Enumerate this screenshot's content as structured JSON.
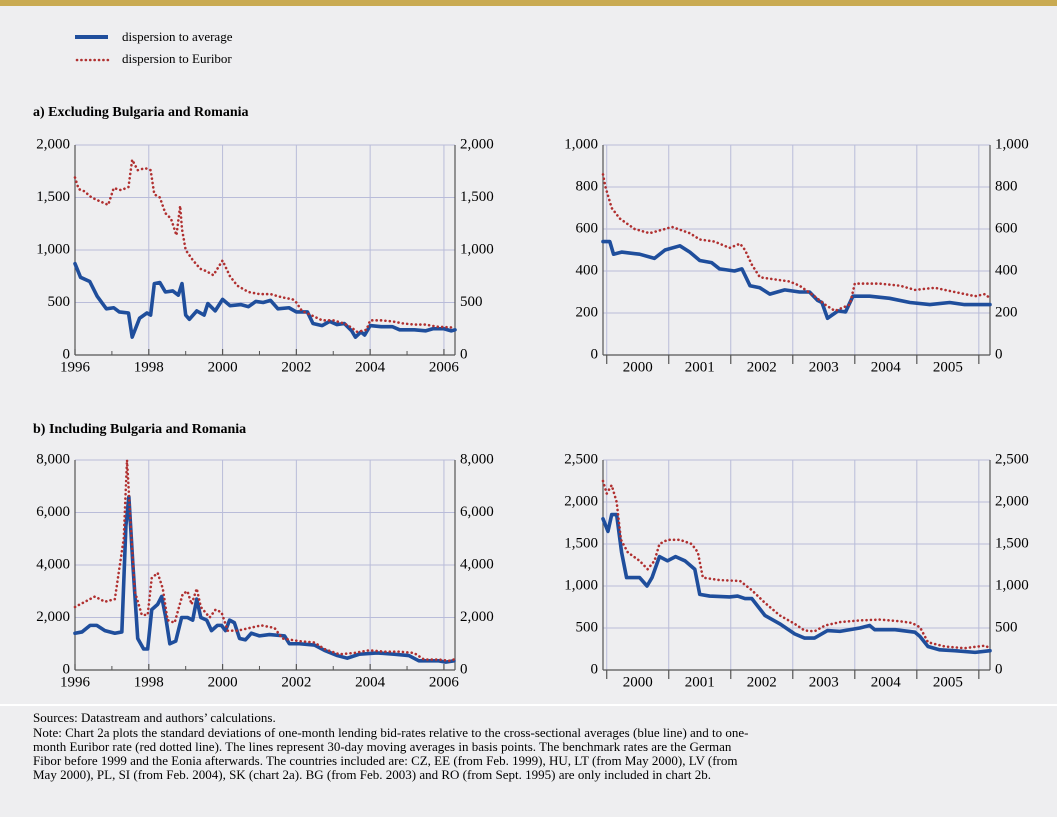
{
  "sections": [
    "a) Excluding Bulgaria and Romania",
    "b) Including Bulgaria and Romania"
  ],
  "sources": "Sources: Datastream and authors’ calculations.",
  "note": [
    "Note: Chart 2a plots the standard deviations of one-month lending bid-rates relative to the cross-sectional averages (blue line) and to one-",
    "month Euribor rate (red dotted line). The lines represent 30-day moving averages in basis points. The benchmark rates are the German",
    "Fibor before 1999 and the Eonia afterwards. The countries included are: CZ, EE (from Feb. 1999), HU, LT (from May 2000), LV (from",
    "May 2000), PL, SI (from Feb. 2004), SK (chart 2a). BG (from Feb. 2003) and RO (from Sept. 1995) are only included in chart 2b."
  ],
  "chart_data": [
    {
      "type": "line",
      "grid": true,
      "xlim": [
        1996,
        2006.3
      ],
      "ylim": [
        0,
        2000
      ],
      "xticks": [
        1996,
        1998,
        2000,
        2002,
        2004,
        2006
      ],
      "xminorticks": [
        1997,
        1999,
        2001,
        2003,
        2005
      ],
      "yticks": [
        0,
        500,
        {
          "value": 1000,
          "label": "1,000"
        },
        {
          "value": 1500,
          "label": "1,500"
        },
        {
          "value": 2000,
          "label": "2,000"
        }
      ],
      "series": [
        {
          "name": "dispersion to average",
          "color": "#1f4e9c",
          "style": "solid",
          "x": [
            1996.0,
            1996.15,
            1996.4,
            1996.6,
            1996.85,
            1997.05,
            1997.2,
            1997.45,
            1997.55,
            1997.75,
            1997.95,
            1998.05,
            1998.15,
            1998.3,
            1998.45,
            1998.65,
            1998.8,
            1998.9,
            1999.0,
            1999.1,
            1999.3,
            1999.5,
            1999.6,
            1999.8,
            2000.0,
            2000.2,
            2000.5,
            2000.7,
            2000.9,
            2001.1,
            2001.3,
            2001.5,
            2001.8,
            2002.0,
            2002.3,
            2002.45,
            2002.7,
            2002.9,
            2003.1,
            2003.3,
            2003.5,
            2003.6,
            2003.75,
            2003.85,
            2004.0,
            2004.3,
            2004.6,
            2004.8,
            2005.2,
            2005.5,
            2005.7,
            2006.0,
            2006.2,
            2006.3
          ],
          "values": [
            870,
            740,
            700,
            560,
            440,
            450,
            410,
            400,
            170,
            350,
            400,
            380,
            680,
            690,
            600,
            610,
            570,
            680,
            380,
            340,
            420,
            380,
            490,
            420,
            530,
            470,
            480,
            460,
            510,
            500,
            520,
            440,
            450,
            410,
            410,
            300,
            280,
            320,
            290,
            300,
            230,
            170,
            220,
            190,
            280,
            270,
            270,
            240,
            240,
            230,
            250,
            250,
            230,
            240
          ]
        },
        {
          "name": "dispersion to Euribor",
          "color": "#b03030",
          "style": "dotted",
          "x": [
            1996.0,
            1996.1,
            1996.25,
            1996.45,
            1996.7,
            1996.9,
            1997.05,
            1997.25,
            1997.45,
            1997.55,
            1997.7,
            1997.9,
            1998.05,
            1998.15,
            1998.3,
            1998.45,
            1998.6,
            1998.75,
            1998.85,
            1998.9,
            1999.0,
            1999.2,
            1999.4,
            1999.55,
            1999.75,
            2000.0,
            2000.2,
            2000.4,
            2000.7,
            2001.0,
            2001.3,
            2001.6,
            2001.9,
            2002.0,
            2002.15,
            2002.4,
            2002.7,
            2003.0,
            2003.3,
            2003.5,
            2003.65,
            2003.9,
            2004.0,
            2004.3,
            2004.6,
            2004.9,
            2005.2,
            2005.5,
            2005.8,
            2006.3
          ],
          "values": [
            1690,
            1580,
            1560,
            1500,
            1460,
            1430,
            1590,
            1570,
            1600,
            1860,
            1760,
            1780,
            1760,
            1530,
            1500,
            1350,
            1300,
            1140,
            1420,
            1200,
            1000,
            900,
            820,
            800,
            760,
            900,
            750,
            660,
            600,
            580,
            580,
            550,
            530,
            500,
            420,
            380,
            330,
            330,
            300,
            260,
            220,
            240,
            330,
            330,
            320,
            300,
            290,
            290,
            270,
            260
          ]
        }
      ]
    },
    {
      "type": "line",
      "grid": true,
      "xlim": [
        1999.94,
        2006.18
      ],
      "ylim": [
        0,
        1000
      ],
      "xticks": [
        2000,
        2001,
        2002,
        2003,
        2004,
        2005,
        2006
      ],
      "xtick_labels": [
        2000,
        2001,
        2002,
        2003,
        2004,
        2005
      ],
      "xtick_label_offset": 0.5,
      "yticks": [
        0,
        200,
        400,
        600,
        800,
        {
          "value": 1000,
          "label": "1,000"
        }
      ],
      "series": [
        {
          "color": "#1f4e9c",
          "style": "solid",
          "x": [
            1999.94,
            2000.05,
            2000.11,
            2000.24,
            2000.53,
            2000.77,
            2000.94,
            2001.18,
            2001.34,
            2001.5,
            2001.69,
            2001.82,
            2002.06,
            2002.18,
            2002.31,
            2002.47,
            2002.63,
            2002.87,
            2003.11,
            2003.27,
            2003.4,
            2003.47,
            2003.56,
            2003.73,
            2003.85,
            2003.97,
            2004.24,
            2004.56,
            2004.89,
            2005.21,
            2005.53,
            2005.77,
            2005.94,
            2006.18
          ],
          "values": [
            540,
            540,
            480,
            490,
            480,
            460,
            500,
            520,
            490,
            450,
            440,
            410,
            400,
            410,
            330,
            320,
            290,
            310,
            300,
            300,
            260,
            250,
            175,
            210,
            205,
            280,
            280,
            270,
            250,
            240,
            250,
            240,
            240,
            240
          ]
        },
        {
          "color": "#b03030",
          "style": "dotted",
          "x": [
            1999.94,
            1999.98,
            2000.08,
            2000.21,
            2000.45,
            2000.69,
            2000.94,
            2001.05,
            2001.34,
            2001.5,
            2001.74,
            2001.98,
            2002.15,
            2002.23,
            2002.34,
            2002.47,
            2002.95,
            2003.11,
            2003.35,
            2003.52,
            2003.68,
            2003.92,
            2004.0,
            2004.4,
            2004.73,
            2004.97,
            2005.29,
            2005.61,
            2005.94,
            2006.1,
            2006.18
          ],
          "values": [
            860,
            800,
            700,
            650,
            600,
            580,
            600,
            610,
            580,
            550,
            540,
            510,
            530,
            500,
            430,
            370,
            350,
            330,
            280,
            240,
            210,
            240,
            340,
            340,
            330,
            310,
            320,
            300,
            280,
            290,
            270
          ]
        }
      ]
    },
    {
      "type": "line",
      "grid": true,
      "xlim": [
        1996,
        2006.3
      ],
      "ylim": [
        0,
        8000
      ],
      "xticks": [
        1996,
        1998,
        2000,
        2002,
        2004,
        2006
      ],
      "xminorticks": [
        1997,
        1999,
        2001,
        2003,
        2005
      ],
      "yticks": [
        0,
        {
          "value": 2000,
          "label": "2,000"
        },
        {
          "value": 4000,
          "label": "4,000"
        },
        {
          "value": 6000,
          "label": "6,000"
        },
        {
          "value": 8000,
          "label": "8,000"
        }
      ],
      "series": [
        {
          "color": "#1f4e9c",
          "style": "solid",
          "x": [
            1996.0,
            1996.19,
            1996.41,
            1996.59,
            1996.81,
            1997.08,
            1997.27,
            1997.38,
            1997.46,
            1997.57,
            1997.7,
            1997.86,
            1997.97,
            1998.08,
            1998.24,
            1998.35,
            1998.46,
            1998.57,
            1998.73,
            1998.89,
            1999.05,
            1999.19,
            1999.3,
            1999.41,
            1999.57,
            1999.7,
            1999.86,
            1999.97,
            2000.08,
            2000.19,
            2000.32,
            2000.46,
            2000.62,
            2000.78,
            2001.0,
            2001.27,
            2001.68,
            2001.81,
            2002.08,
            2002.49,
            2002.76,
            2003.11,
            2003.38,
            2003.7,
            2004.19,
            2004.65,
            2005.05,
            2005.32,
            2005.86,
            2006.05,
            2006.27
          ],
          "values": [
            1400,
            1450,
            1700,
            1700,
            1500,
            1400,
            1450,
            5500,
            6600,
            4000,
            1200,
            800,
            800,
            2300,
            2500,
            2800,
            2000,
            1000,
            1100,
            2000,
            2000,
            1900,
            2700,
            2000,
            1900,
            1500,
            1700,
            1700,
            1500,
            1900,
            1800,
            1200,
            1150,
            1400,
            1300,
            1350,
            1300,
            1000,
            1000,
            950,
            750,
            550,
            450,
            600,
            650,
            600,
            550,
            350,
            350,
            300,
            350
          ]
        },
        {
          "color": "#b03030",
          "style": "dotted",
          "x": [
            1996.0,
            1996.27,
            1996.54,
            1996.81,
            1997.08,
            1997.32,
            1997.41,
            1997.49,
            1997.62,
            1997.81,
            1997.97,
            1998.08,
            1998.24,
            1998.38,
            1998.51,
            1998.7,
            1998.92,
            1999.05,
            1999.16,
            1999.3,
            1999.41,
            1999.65,
            1999.81,
            1999.97,
            2000.14,
            2000.41,
            2000.73,
            2001.05,
            2001.41,
            2001.62,
            2002.08,
            2002.49,
            2002.76,
            2003.16,
            2003.57,
            2003.97,
            2004.38,
            2004.78,
            2005.19,
            2005.46,
            2005.86,
            2006.14,
            2006.27
          ],
          "values": [
            2400,
            2600,
            2800,
            2600,
            2700,
            5000,
            8000,
            6000,
            3000,
            2100,
            2100,
            3500,
            3700,
            3100,
            1900,
            1800,
            2900,
            3000,
            2500,
            3100,
            2400,
            2000,
            2300,
            2200,
            1500,
            1500,
            1600,
            1700,
            1600,
            1200,
            1100,
            1050,
            800,
            600,
            650,
            750,
            700,
            700,
            650,
            400,
            400,
            350,
            400
          ]
        }
      ]
    },
    {
      "type": "line",
      "grid": true,
      "xlim": [
        1999.94,
        2006.18
      ],
      "ylim": [
        0,
        2500
      ],
      "xticks": [
        2000,
        2001,
        2002,
        2003,
        2004,
        2005,
        2006
      ],
      "xtick_labels": [
        2000,
        2001,
        2002,
        2003,
        2004,
        2005
      ],
      "xtick_label_offset": 0.5,
      "yticks": [
        0,
        500,
        {
          "value": 1000,
          "label": "1,000"
        },
        {
          "value": 1500,
          "label": "1,500"
        },
        {
          "value": 2000,
          "label": "2,000"
        },
        {
          "value": 2500,
          "label": "2,500"
        }
      ],
      "series": [
        {
          "color": "#1f4e9c",
          "style": "solid",
          "x": [
            1999.94,
            2000.02,
            2000.08,
            2000.16,
            2000.24,
            2000.32,
            2000.53,
            2000.65,
            2000.73,
            2000.85,
            2000.98,
            2001.11,
            2001.26,
            2001.42,
            2001.5,
            2001.66,
            2001.98,
            2002.11,
            2002.23,
            2002.34,
            2002.55,
            2002.79,
            2003.03,
            2003.19,
            2003.35,
            2003.56,
            2003.76,
            2004.08,
            2004.24,
            2004.32,
            2004.65,
            2004.97,
            2005.05,
            2005.18,
            2005.37,
            2005.61,
            2005.94,
            2006.18
          ],
          "values": [
            1800,
            1650,
            1850,
            1850,
            1400,
            1100,
            1100,
            1000,
            1100,
            1350,
            1300,
            1350,
            1300,
            1200,
            900,
            880,
            870,
            880,
            850,
            850,
            650,
            550,
            430,
            380,
            380,
            470,
            460,
            500,
            530,
            480,
            480,
            450,
            400,
            280,
            240,
            230,
            210,
            230
          ]
        },
        {
          "color": "#b03030",
          "style": "dotted",
          "x": [
            1999.94,
            2000.0,
            2000.08,
            2000.16,
            2000.23,
            2000.34,
            2000.53,
            2000.66,
            2000.77,
            2000.85,
            2000.98,
            2001.18,
            2001.37,
            2001.47,
            2001.55,
            2001.82,
            2002.15,
            2002.34,
            2002.55,
            2002.79,
            2003.03,
            2003.19,
            2003.35,
            2003.52,
            2003.76,
            2004.08,
            2004.4,
            2004.73,
            2004.92,
            2005.05,
            2005.18,
            2005.45,
            2005.77,
            2006.1,
            2006.18
          ],
          "values": [
            2250,
            2100,
            2200,
            2000,
            1550,
            1400,
            1300,
            1200,
            1300,
            1500,
            1550,
            1550,
            1500,
            1400,
            1100,
            1070,
            1060,
            950,
            800,
            650,
            550,
            470,
            460,
            530,
            570,
            590,
            600,
            580,
            560,
            510,
            330,
            280,
            260,
            290,
            260
          ]
        }
      ]
    }
  ]
}
